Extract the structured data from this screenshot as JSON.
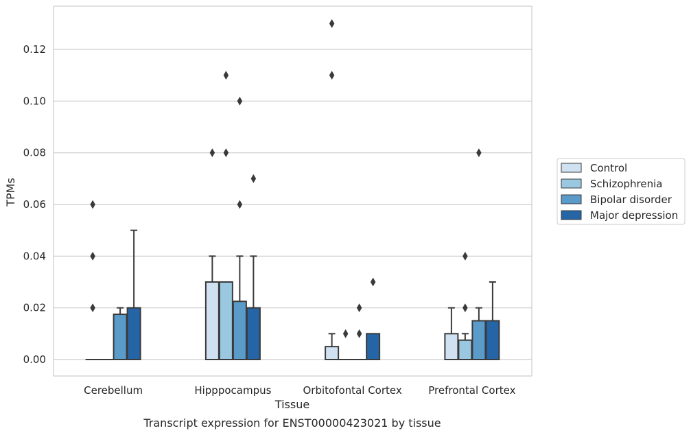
{
  "chart_data": {
    "type": "box",
    "caption": "Transcript expression for ENST00000423021 by tissue",
    "xlabel": "Tissue",
    "ylabel": "TPMs",
    "ylim": [
      -0.0065,
      0.137
    ],
    "yticks": [
      0.0,
      0.02,
      0.04,
      0.06,
      0.08,
      0.1,
      0.12
    ],
    "ytick_labels": [
      "0.00",
      "0.02",
      "0.04",
      "0.06",
      "0.08",
      "0.10",
      "0.12"
    ],
    "grid": "horizontal",
    "legend_position": "right",
    "categories": [
      "Cerebellum",
      "Hipppocampus",
      "Orbitofontal Cortex",
      "Prefrontal Cortex"
    ],
    "series": [
      {
        "name": "Control",
        "color": "#d0e1f2",
        "boxes": [
          {
            "q1": 0.0,
            "median": 0.0,
            "q3": 0.0,
            "whisker_low": 0.0,
            "whisker_high": 0.0,
            "outliers": [
              0.02,
              0.04,
              0.06
            ]
          },
          {
            "q1": 0.0,
            "median": 0.0,
            "q3": 0.03,
            "whisker_low": 0.0,
            "whisker_high": 0.04,
            "outliers": [
              0.08
            ]
          },
          {
            "q1": 0.0,
            "median": 0.0,
            "q3": 0.005,
            "whisker_low": 0.0,
            "whisker_high": 0.01,
            "outliers": [
              0.11,
              0.13
            ]
          },
          {
            "q1": 0.0,
            "median": 0.0,
            "q3": 0.01,
            "whisker_low": 0.0,
            "whisker_high": 0.02,
            "outliers": []
          }
        ]
      },
      {
        "name": "Schizophrenia",
        "color": "#9ac8e0",
        "boxes": [
          {
            "q1": 0.0,
            "median": 0.0,
            "q3": 0.0,
            "whisker_low": 0.0,
            "whisker_high": 0.0,
            "outliers": []
          },
          {
            "q1": 0.0,
            "median": 0.0,
            "q3": 0.03,
            "whisker_low": 0.0,
            "whisker_high": 0.03,
            "outliers": [
              0.08,
              0.11
            ]
          },
          {
            "q1": 0.0,
            "median": 0.0,
            "q3": 0.0,
            "whisker_low": 0.0,
            "whisker_high": 0.0,
            "outliers": [
              0.01
            ]
          },
          {
            "q1": 0.0,
            "median": 0.0,
            "q3": 0.0075,
            "whisker_low": 0.0,
            "whisker_high": 0.01,
            "outliers": [
              0.02,
              0.04
            ]
          }
        ]
      },
      {
        "name": "Bipolar disorder",
        "color": "#5a9bc9",
        "boxes": [
          {
            "q1": 0.0,
            "median": 0.0,
            "q3": 0.0175,
            "whisker_low": 0.0,
            "whisker_high": 0.02,
            "outliers": []
          },
          {
            "q1": 0.0,
            "median": 0.0,
            "q3": 0.0225,
            "whisker_low": 0.0,
            "whisker_high": 0.04,
            "outliers": [
              0.06,
              0.1
            ]
          },
          {
            "q1": 0.0,
            "median": 0.0,
            "q3": 0.0,
            "whisker_low": 0.0,
            "whisker_high": 0.0,
            "outliers": [
              0.01,
              0.02
            ]
          },
          {
            "q1": 0.0,
            "median": 0.0,
            "q3": 0.015,
            "whisker_low": 0.0,
            "whisker_high": 0.02,
            "outliers": [
              0.08
            ]
          }
        ]
      },
      {
        "name": "Major depression",
        "color": "#2565a6",
        "boxes": [
          {
            "q1": 0.0,
            "median": 0.0,
            "q3": 0.02,
            "whisker_low": 0.0,
            "whisker_high": 0.05,
            "outliers": []
          },
          {
            "q1": 0.0,
            "median": 0.0,
            "q3": 0.02,
            "whisker_low": 0.0,
            "whisker_high": 0.04,
            "outliers": [
              0.07
            ]
          },
          {
            "q1": 0.0,
            "median": 0.0,
            "q3": 0.01,
            "whisker_low": 0.0,
            "whisker_high": 0.01,
            "outliers": [
              0.03
            ]
          },
          {
            "q1": 0.0,
            "median": 0.0,
            "q3": 0.015,
            "whisker_low": 0.0,
            "whisker_high": 0.03,
            "outliers": []
          }
        ]
      }
    ]
  }
}
